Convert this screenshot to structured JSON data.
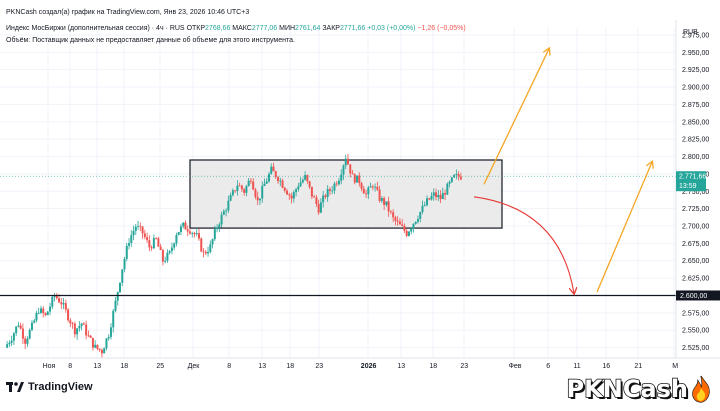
{
  "header": {
    "line1": "PKNCash создал(а) график на TradingView.com, Янв 23, 2026 10:46 UTC+3",
    "instrument": "Индекс МосБиржи (дополнительная сессия) · 4ч · RUS",
    "open_label": "ОТКР",
    "open": "2768,66",
    "high_label": "МАКС",
    "high": "2777,06",
    "low_label": "МИН",
    "low": "2761,64",
    "close_label": "ЗАКР",
    "close": "2771,66",
    "change1": "+0,03 (+0,00%)",
    "change2": "−1,26 (−0,05%)",
    "volume_note": "Объём: Поставщик данных не предоставляет данные об объеме для этого инструмента."
  },
  "footer": {
    "logo_text": "TradingView",
    "brand_text": "PKNCash",
    "brand_icon": "flame-icon"
  },
  "colors": {
    "up": "#26a69a",
    "down": "#ef5350",
    "orange": "#f5a623",
    "red_arrow": "#e53935",
    "price_tag": "#26a69a",
    "level_tag": "#131722",
    "box_fill": "#ebebeb"
  },
  "chart_data": {
    "type": "candlestick",
    "currency": "RUB",
    "y_ticks": [
      2525,
      2550,
      2575,
      2600,
      2625,
      2650,
      2675,
      2700,
      2725,
      2750,
      2775,
      2800,
      2825,
      2850,
      2875,
      2900,
      2925,
      2950,
      2975
    ],
    "y_tick_labels": [
      "2.525,00",
      "2.550,00",
      "2.575,00",
      "2.600,00",
      "2.625,00",
      "2.650,00",
      "2.675,00",
      "2.700,00",
      "2.725,00",
      "2.750,00",
      "2.775,00",
      "2.800,00",
      "2.825,00",
      "2.850,00",
      "2.875,00",
      "2.900,00",
      "2.925,00",
      "2.950,00",
      "2.975,00"
    ],
    "ylim": [
      2510,
      2985
    ],
    "x_tick_labels": [
      "Ноя",
      "8",
      "13",
      "18",
      "25",
      "Дек",
      "8",
      "13",
      "18",
      "23",
      "2026",
      "13",
      "18",
      "23",
      "Фев",
      "6",
      "11",
      "16",
      "21",
      "М"
    ],
    "current_price_label": "2.771,66",
    "current_price": 2771.66,
    "countdown_label": "13:59",
    "level_price": 2600,
    "level_label": "2.600,00",
    "range_box": {
      "top": 2795,
      "bottom": 2697
    },
    "price_path": [
      [
        0,
        2525
      ],
      [
        3,
        2540
      ],
      [
        6,
        2560
      ],
      [
        9,
        2535
      ],
      [
        12,
        2555
      ],
      [
        15,
        2580
      ],
      [
        18,
        2570
      ],
      [
        22,
        2600
      ],
      [
        25,
        2590
      ],
      [
        28,
        2570
      ],
      [
        31,
        2550
      ],
      [
        34,
        2560
      ],
      [
        37,
        2540
      ],
      [
        40,
        2525
      ],
      [
        43,
        2520
      ],
      [
        46,
        2545
      ],
      [
        49,
        2590
      ],
      [
        52,
        2640
      ],
      [
        55,
        2680
      ],
      [
        58,
        2700
      ],
      [
        61,
        2690
      ],
      [
        64,
        2670
      ],
      [
        67,
        2680
      ],
      [
        70,
        2650
      ],
      [
        73,
        2660
      ],
      [
        76,
        2690
      ],
      [
        79,
        2700
      ],
      [
        82,
        2695
      ],
      [
        85,
        2685
      ],
      [
        88,
        2660
      ],
      [
        91,
        2670
      ],
      [
        94,
        2700
      ],
      [
        97,
        2720
      ],
      [
        100,
        2740
      ],
      [
        103,
        2760
      ],
      [
        106,
        2750
      ],
      [
        109,
        2770
      ],
      [
        112,
        2735
      ],
      [
        115,
        2760
      ],
      [
        118,
        2780
      ],
      [
        121,
        2770
      ],
      [
        124,
        2755
      ],
      [
        127,
        2740
      ],
      [
        130,
        2760
      ],
      [
        133,
        2770
      ],
      [
        136,
        2745
      ],
      [
        139,
        2725
      ],
      [
        142,
        2745
      ],
      [
        145,
        2755
      ],
      [
        148,
        2770
      ],
      [
        151,
        2800
      ],
      [
        154,
        2770
      ],
      [
        157,
        2765
      ],
      [
        160,
        2745
      ],
      [
        163,
        2760
      ],
      [
        166,
        2740
      ],
      [
        169,
        2730
      ],
      [
        172,
        2710
      ],
      [
        175,
        2700
      ],
      [
        178,
        2690
      ],
      [
        181,
        2705
      ],
      [
        184,
        2720
      ],
      [
        187,
        2735
      ],
      [
        190,
        2745
      ],
      [
        193,
        2740
      ],
      [
        196,
        2755
      ],
      [
        199,
        2770
      ],
      [
        202,
        2772
      ]
    ]
  }
}
